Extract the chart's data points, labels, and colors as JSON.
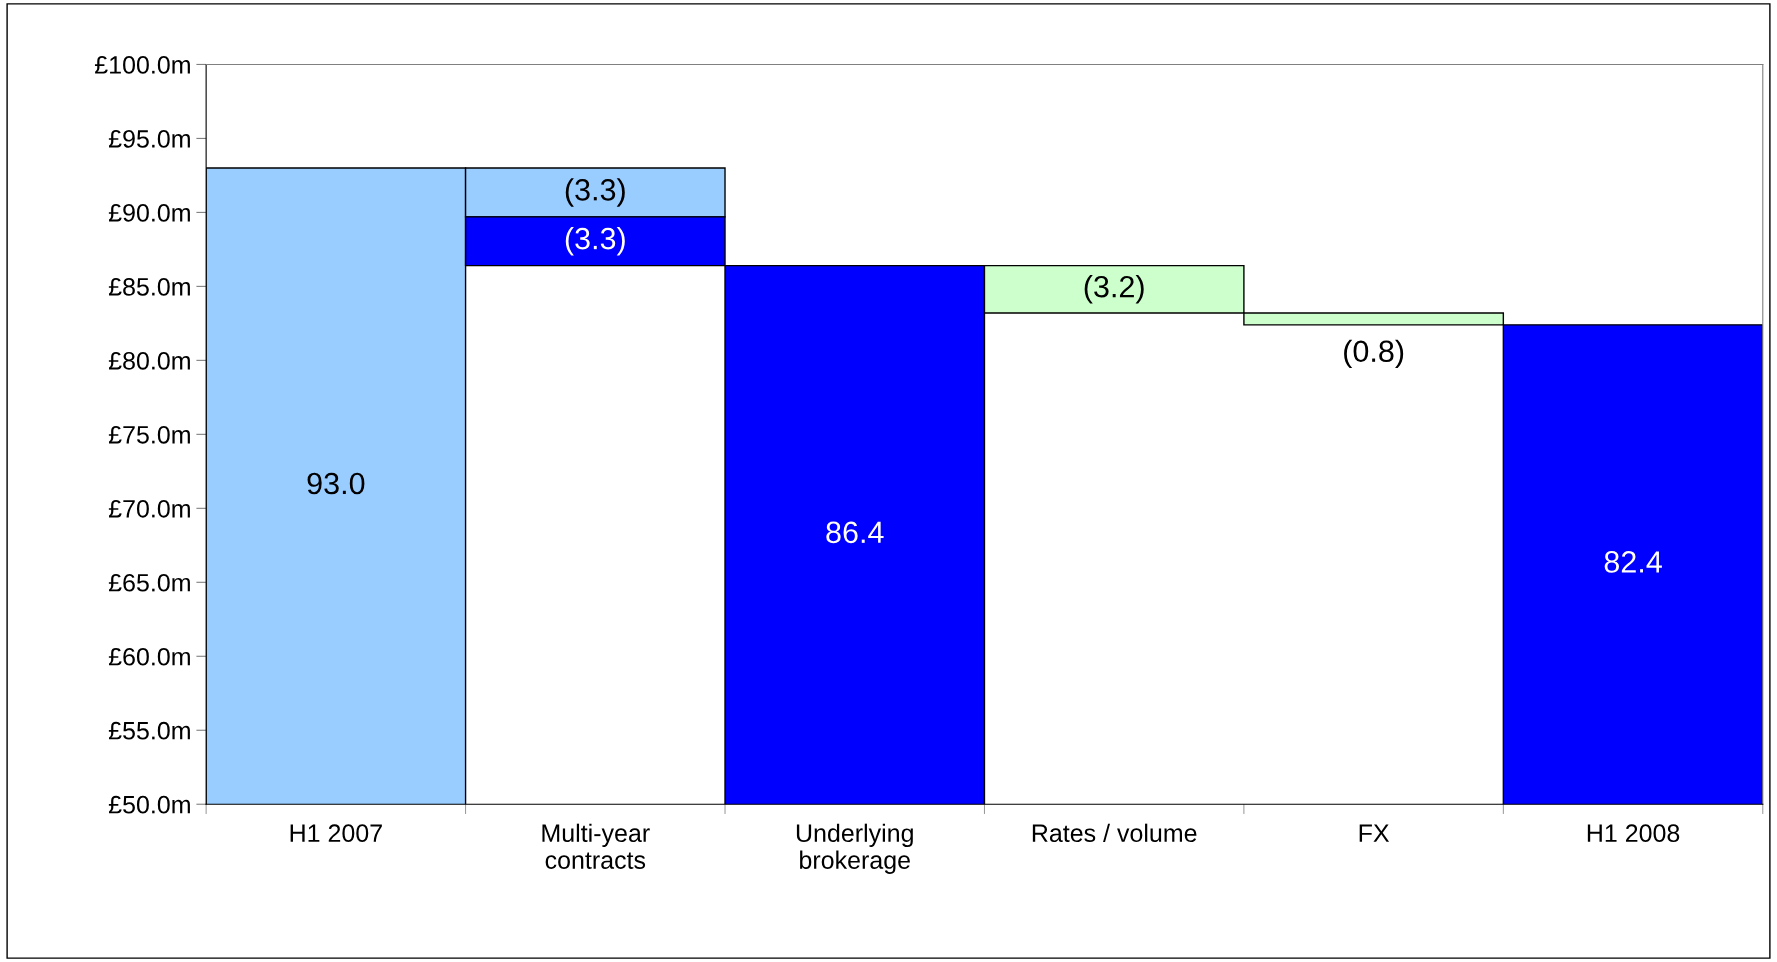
{
  "chart_data": {
    "type": "bar",
    "categories": [
      "H1 2007",
      "Multi-year\ncontracts",
      "Underlying\nbrokerage",
      "Rates / volume",
      "FX",
      "H1 2008"
    ],
    "series": [
      {
        "values": [
          93.0,
          -3.3,
          86.4,
          -3.2,
          -0.8,
          82.4
        ],
        "base": [
          0,
          93.0,
          0,
          86.4,
          83.2,
          0
        ],
        "colors": [
          "#99ccff",
          "#99ccff",
          "#0000ff",
          "#ccffcc",
          "#ccffcc",
          "#0000ff"
        ],
        "value_labels": [
          "93.0",
          "(3.3)",
          "86.4",
          "(3.2)",
          "(0.8)",
          "82.4"
        ]
      },
      {
        "values": [
          null,
          -3.3,
          null,
          null,
          null,
          null
        ],
        "base": [
          null,
          89.7,
          null,
          null,
          null,
          null
        ],
        "colors": [
          null,
          "#0000ff",
          null,
          null,
          null,
          null
        ],
        "value_labels": [
          null,
          "(3.3)",
          null,
          null,
          null,
          null
        ]
      }
    ],
    "ylim": [
      50,
      100
    ],
    "yticks": [
      {
        "value": 50,
        "label": "£50.0m"
      },
      {
        "value": 55,
        "label": "£55.0m"
      },
      {
        "value": 60,
        "label": "£60.0m"
      },
      {
        "value": 65,
        "label": "£65.0m"
      },
      {
        "value": 70,
        "label": "£70.0m"
      },
      {
        "value": 75,
        "label": "£75.0m"
      },
      {
        "value": 80,
        "label": "£80.0m"
      },
      {
        "value": 85,
        "label": "£85.0m"
      },
      {
        "value": 90,
        "label": "£90.0m"
      },
      {
        "value": 95,
        "label": "£95.0m"
      },
      {
        "value": 100,
        "label": "£100.0m"
      }
    ],
    "grid": false,
    "legend": false
  }
}
